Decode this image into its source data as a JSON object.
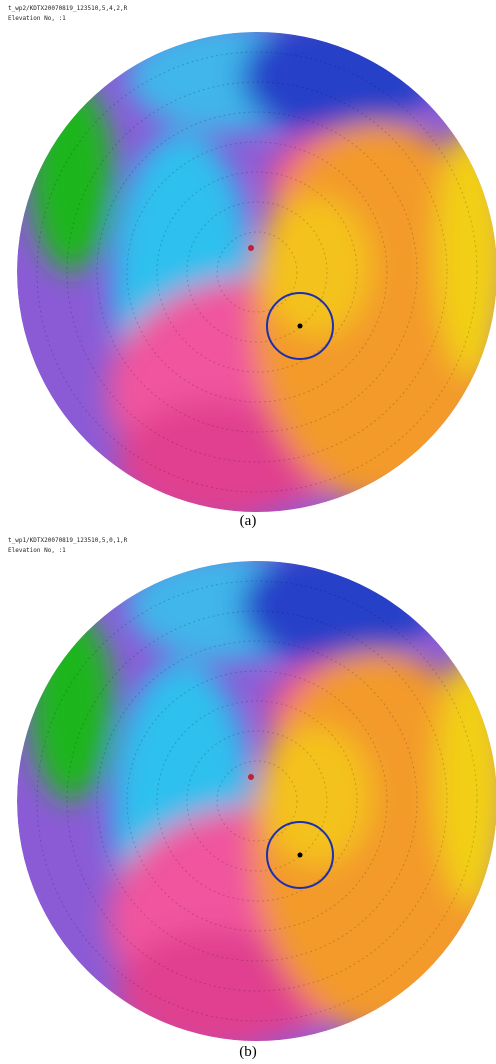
{
  "panels": [
    {
      "header": [
        "t_wp2/KDTX20070819_123510,5,4,2,R",
        "Elevation No,  :1"
      ],
      "caption": "(a)"
    },
    {
      "header": [
        "t_wp1/KDTX20070819_123510,5,0,1,R",
        "Elevation No,  :1"
      ],
      "caption": "(b)"
    }
  ]
}
